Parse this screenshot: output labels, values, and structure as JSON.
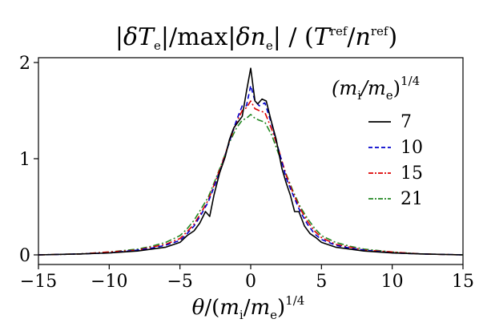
{
  "chart_data": {
    "type": "line",
    "title": "|δTₑ|/max|δnₑ| / (T^ref/n^ref)",
    "xlabel": "θ/(mᵢ/mₑ)^1/4",
    "ylabel": "",
    "xlim": [
      -15,
      15
    ],
    "ylim": [
      -0.1,
      2.05
    ],
    "xticks": [
      "−15",
      "−10",
      "−5",
      "0",
      "5",
      "10",
      "15"
    ],
    "yticks": [
      "0",
      "1",
      "2"
    ],
    "grid": false,
    "legend_title": "(mᵢ/mₑ)^1/4",
    "legend_position": "upper-right",
    "series": [
      {
        "name": "7",
        "color": "#000000",
        "dash": "solid",
        "x": [
          -15,
          -12,
          -10,
          -8,
          -7,
          -6,
          -5,
          -4.5,
          -4,
          -3.6,
          -3.2,
          -2.9,
          -2.6,
          -2.2,
          -1.8,
          -1.5,
          -1.2,
          -0.9,
          -0.6,
          -0.3,
          0,
          0.3,
          0.5,
          0.8,
          1.1,
          1.4,
          1.8,
          2.2,
          2.5,
          2.8,
          3.1,
          3.4,
          3.8,
          4.2,
          4.6,
          5,
          6,
          7,
          8,
          10,
          12,
          15
        ],
        "y": [
          0.0,
          0.01,
          0.02,
          0.04,
          0.06,
          0.08,
          0.13,
          0.2,
          0.25,
          0.33,
          0.45,
          0.4,
          0.62,
          0.85,
          1.02,
          1.2,
          1.32,
          1.38,
          1.44,
          1.7,
          1.94,
          1.6,
          1.57,
          1.62,
          1.6,
          1.42,
          1.2,
          0.9,
          0.75,
          0.62,
          0.45,
          0.45,
          0.3,
          0.22,
          0.18,
          0.13,
          0.08,
          0.06,
          0.04,
          0.02,
          0.01,
          0.0
        ]
      },
      {
        "name": "10",
        "color": "#0000cc",
        "dash": "6,4",
        "x": [
          -15,
          -12,
          -10,
          -8,
          -7,
          -6,
          -5,
          -4.5,
          -4,
          -3.5,
          -3,
          -2.5,
          -2,
          -1.5,
          -1,
          -0.6,
          -0.3,
          0,
          0.3,
          0.6,
          1,
          1.5,
          2,
          2.5,
          3,
          3.5,
          4,
          4.5,
          5,
          6,
          7,
          8,
          10,
          12,
          15
        ],
        "y": [
          0.0,
          0.01,
          0.02,
          0.05,
          0.07,
          0.1,
          0.15,
          0.22,
          0.3,
          0.42,
          0.55,
          0.74,
          0.94,
          1.18,
          1.4,
          1.55,
          1.55,
          1.76,
          1.6,
          1.55,
          1.58,
          1.35,
          1.08,
          0.8,
          0.62,
          0.45,
          0.32,
          0.22,
          0.16,
          0.1,
          0.07,
          0.05,
          0.02,
          0.01,
          0.0
        ]
      },
      {
        "name": "15",
        "color": "#dd0000",
        "dash": "8,3,2,3",
        "x": [
          -15,
          -12,
          -10,
          -8,
          -7,
          -6,
          -5,
          -4.5,
          -4,
          -3.5,
          -3,
          -2.5,
          -2,
          -1.5,
          -1,
          -0.6,
          -0.3,
          0,
          0.3,
          0.6,
          1,
          1.5,
          2,
          2.5,
          3,
          3.5,
          4,
          4.5,
          5,
          6,
          7,
          8,
          10,
          12,
          15
        ],
        "y": [
          0.0,
          0.01,
          0.03,
          0.05,
          0.08,
          0.11,
          0.17,
          0.24,
          0.32,
          0.44,
          0.57,
          0.76,
          0.96,
          1.18,
          1.38,
          1.5,
          1.53,
          1.6,
          1.52,
          1.5,
          1.48,
          1.3,
          1.08,
          0.83,
          0.64,
          0.48,
          0.35,
          0.25,
          0.18,
          0.11,
          0.08,
          0.05,
          0.03,
          0.01,
          0.0
        ]
      },
      {
        "name": "21",
        "color": "#228822",
        "dash": "8,3,2,3",
        "x": [
          -15,
          -12,
          -10,
          -8,
          -7,
          -6,
          -5,
          -4.5,
          -4,
          -3.5,
          -3,
          -2.5,
          -2,
          -1.5,
          -1,
          -0.6,
          -0.3,
          0,
          0.3,
          0.6,
          1,
          1.5,
          2,
          2.5,
          3,
          3.5,
          4,
          4.5,
          5,
          6,
          7,
          8,
          10,
          12,
          15
        ],
        "y": [
          0.0,
          0.01,
          0.03,
          0.06,
          0.09,
          0.13,
          0.2,
          0.27,
          0.36,
          0.48,
          0.6,
          0.78,
          0.97,
          1.17,
          1.32,
          1.4,
          1.42,
          1.46,
          1.42,
          1.4,
          1.38,
          1.24,
          1.04,
          0.84,
          0.66,
          0.5,
          0.38,
          0.28,
          0.2,
          0.13,
          0.09,
          0.06,
          0.03,
          0.01,
          0.0
        ]
      }
    ]
  }
}
